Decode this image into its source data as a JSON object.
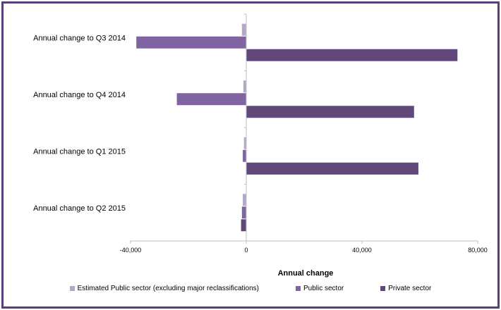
{
  "chart_data": {
    "type": "bar",
    "orientation": "horizontal",
    "categories": [
      "Annual change to Q3 2014",
      "Annual change to Q4 2014",
      "Annual change to Q1 2015",
      "Annual change to Q2 2015"
    ],
    "series": [
      {
        "name": "Estimated Public sector (excluding major reclassifications)",
        "color": "#b4a7c9",
        "values": [
          -1500,
          -1000,
          -800,
          -1200
        ]
      },
      {
        "name": "Public sector",
        "color": "#8064a2",
        "values": [
          -38000,
          -24000,
          -1200,
          -1500
        ]
      },
      {
        "name": "Private sector",
        "color": "#60497a",
        "values": [
          73000,
          58000,
          59500,
          -1800
        ]
      }
    ],
    "xlabel": "Annual change",
    "xlim": [
      -40000,
      80000
    ],
    "xticks": [
      -40000,
      0,
      40000,
      80000
    ],
    "xtick_labels": [
      "-40,000",
      "0",
      "40,000",
      "80,000"
    ],
    "grid": false,
    "legend_position": "bottom"
  }
}
